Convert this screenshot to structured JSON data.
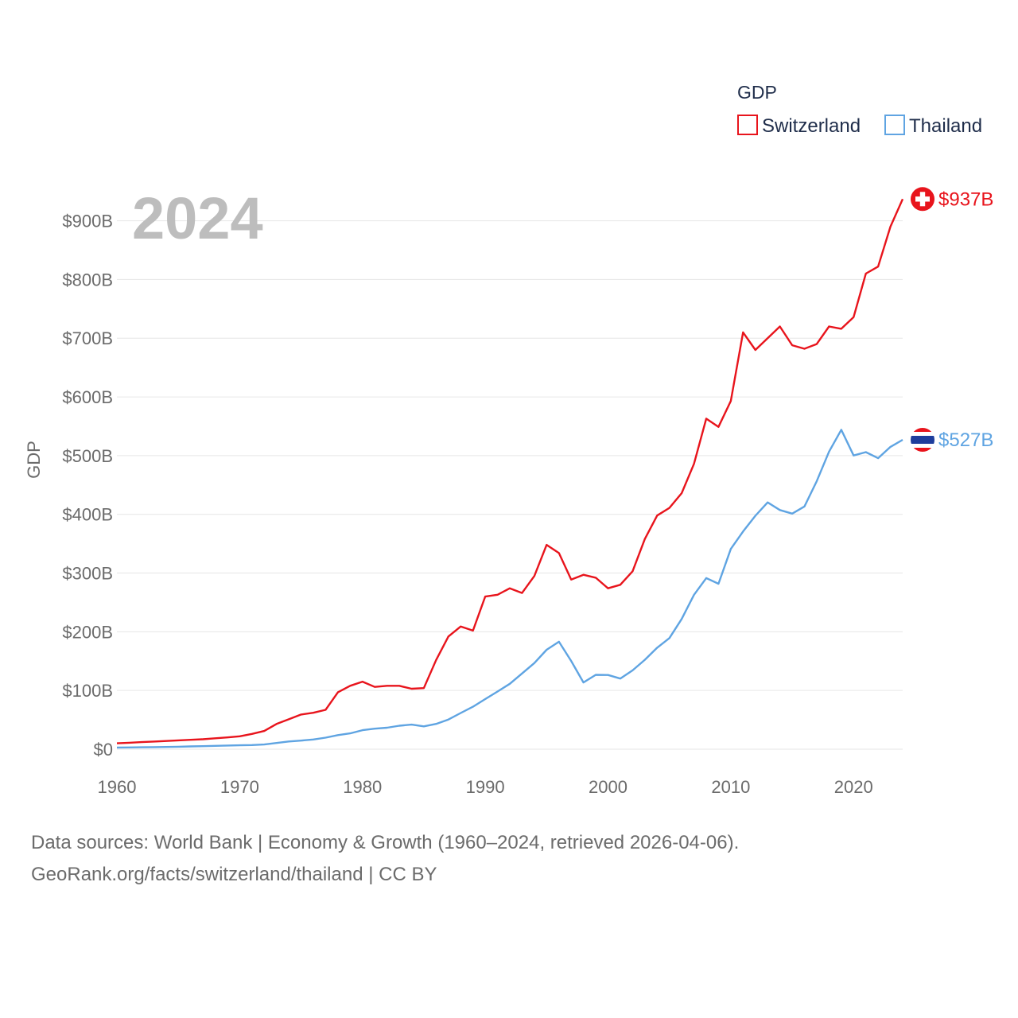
{
  "chart_data": {
    "type": "line",
    "title": "",
    "overlay_year": "2024",
    "legend_title": "GDP",
    "ylabel": "GDP",
    "xlabel": "",
    "xlim": [
      1960,
      2024
    ],
    "ylim": [
      0,
      950
    ],
    "x_ticks": [
      1960,
      1970,
      1980,
      1990,
      2000,
      2010,
      2020
    ],
    "y_ticks": [
      0,
      100,
      200,
      300,
      400,
      500,
      600,
      700,
      800,
      900
    ],
    "y_tick_labels": [
      "$0",
      "$100B",
      "$200B",
      "$300B",
      "$400B",
      "$500B",
      "$600B",
      "$700B",
      "$800B",
      "$900B"
    ],
    "x_tick_labels": [
      "1960",
      "1970",
      "1980",
      "1990",
      "2000",
      "2010",
      "2020"
    ],
    "units": "billions USD",
    "years": [
      1960,
      1961,
      1962,
      1963,
      1964,
      1965,
      1966,
      1967,
      1968,
      1969,
      1970,
      1971,
      1972,
      1973,
      1974,
      1975,
      1976,
      1977,
      1978,
      1979,
      1980,
      1981,
      1982,
      1983,
      1984,
      1985,
      1986,
      1987,
      1988,
      1989,
      1990,
      1991,
      1992,
      1993,
      1994,
      1995,
      1996,
      1997,
      1998,
      1999,
      2000,
      2001,
      2002,
      2003,
      2004,
      2005,
      2006,
      2007,
      2008,
      2009,
      2010,
      2011,
      2012,
      2013,
      2014,
      2015,
      2016,
      2017,
      2018,
      2019,
      2020,
      2021,
      2022,
      2023,
      2024
    ],
    "series": [
      {
        "name": "Switzerland",
        "color": "#e8141c",
        "end_label": "$937B",
        "values": [
          10,
          11,
          12,
          13,
          14,
          15,
          16,
          17,
          18.5,
          20,
          22,
          26,
          31,
          43,
          51,
          59,
          62,
          67,
          97,
          108,
          115,
          106,
          108,
          108,
          103,
          104,
          152,
          192,
          209,
          202,
          260,
          263,
          274,
          266,
          295,
          348,
          334,
          289,
          297,
          292,
          274,
          280,
          303,
          358,
          398,
          411,
          436,
          486,
          563,
          549,
          593,
          710,
          680,
          700,
          720,
          688,
          682,
          690,
          720,
          716,
          736,
          810,
          822,
          890,
          937
        ]
      },
      {
        "name": "Thailand",
        "color": "#5fa4e2",
        "end_label": "$527B",
        "values": [
          2.8,
          3.0,
          3.3,
          3.5,
          3.8,
          4.2,
          4.7,
          5.2,
          5.7,
          6.2,
          6.6,
          7.0,
          8.0,
          10.5,
          13.2,
          14.6,
          16.5,
          19.7,
          24.0,
          27.0,
          32.4,
          34.9,
          36.6,
          40.0,
          41.8,
          38.9,
          43.1,
          50.5,
          61.7,
          72.3,
          85.3,
          98.2,
          111.4,
          128.9,
          146.7,
          169.3,
          183.0,
          150.2,
          113.7,
          126.7,
          126.4,
          120.3,
          134.3,
          152.3,
          172.9,
          189.3,
          221.8,
          262.9,
          291.4,
          281.7,
          341.1,
          370.8,
          397.6,
          420.3,
          407.3,
          401.3,
          413.4,
          456.4,
          506.8,
          544.0,
          500.2,
          506.0,
          495.6,
          514.9,
          527.0
        ]
      }
    ]
  },
  "footer": {
    "line1": "Data sources: World Bank | Economy & Growth (1960–2024, retrieved 2026-04-06).",
    "line2": "GeoRank.org/facts/switzerland/thailand | CC BY"
  }
}
